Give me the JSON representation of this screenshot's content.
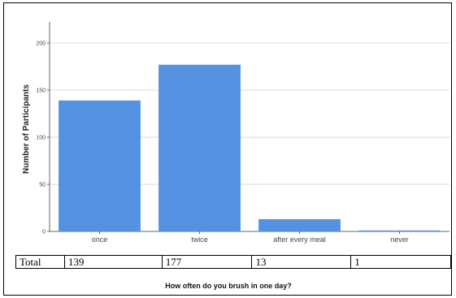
{
  "chart_data": {
    "type": "bar",
    "categories": [
      "once",
      "twice",
      "after every meal",
      "never"
    ],
    "values": [
      139,
      177,
      13,
      1
    ],
    "title": "",
    "xlabel": "How often do you brush in one day?",
    "ylabel": "Number of Participants",
    "ylim": [
      0,
      225
    ],
    "yticks": [
      0,
      50,
      100,
      150,
      200
    ],
    "grid": true,
    "bar_color": "#5591e1"
  },
  "table": {
    "row_label": "Total",
    "cells": [
      "139",
      "177",
      "13",
      "1"
    ]
  }
}
